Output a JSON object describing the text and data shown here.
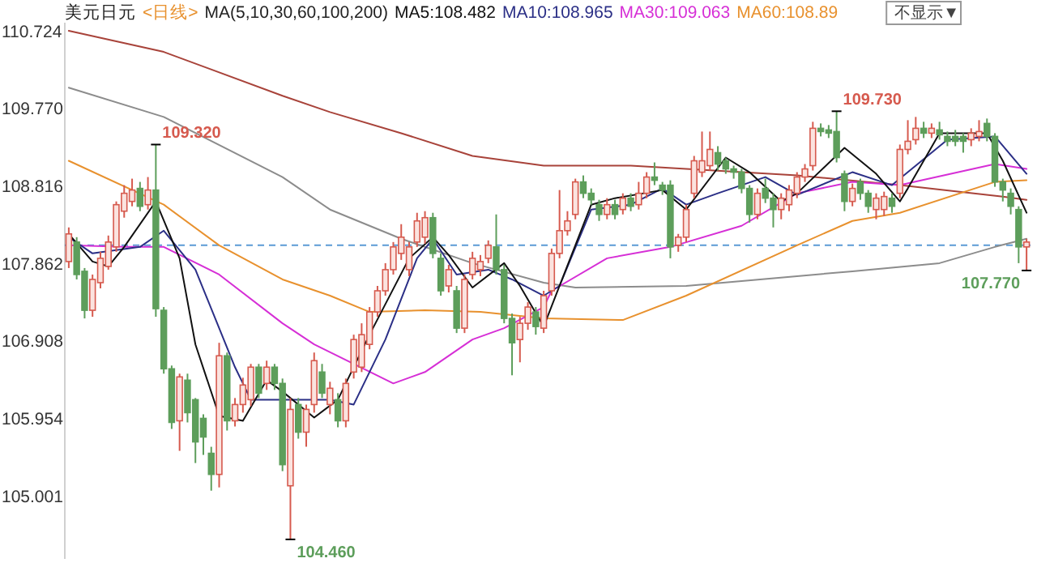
{
  "chart_data": {
    "type": "candlestick",
    "title": "美元日元",
    "subtitle": "<日线>",
    "legend": "top",
    "tick_labels": "y",
    "annotations": [
      "MA(5,10,30,60,100,200)",
      "不显示▼",
      "109.320",
      "104.460",
      "109.730",
      "107.770"
    ],
    "ylim": [
      104.22,
      110.82
    ],
    "yticks": [
      {
        "value": 110.724,
        "label": "110.724"
      },
      {
        "value": 109.77,
        "label": "109.770"
      },
      {
        "value": 108.816,
        "label": "108.816"
      },
      {
        "value": 107.862,
        "label": "107.862"
      },
      {
        "value": 106.908,
        "label": "106.908"
      },
      {
        "value": 105.954,
        "label": "105.954"
      },
      {
        "value": 105.001,
        "label": "105.001"
      }
    ],
    "ref_lines": [
      {
        "axis": "y",
        "value": 108.08,
        "color": "#5b9bd5",
        "line_style": "dashed"
      }
    ],
    "categories": [
      null,
      null,
      null,
      null,
      null,
      null,
      null,
      null,
      null,
      null,
      null,
      null,
      null,
      null,
      null,
      null,
      null,
      null,
      null,
      null,
      null,
      null,
      null,
      null,
      null,
      null,
      null,
      null,
      null,
      null,
      null,
      null,
      null,
      null,
      null,
      null,
      null,
      null,
      null,
      null,
      null,
      null,
      null,
      null,
      null,
      null,
      null,
      null,
      null,
      null,
      null,
      null,
      null,
      null,
      null,
      null,
      null,
      null,
      null,
      null,
      null,
      null,
      null,
      null,
      null,
      null,
      null,
      null,
      null,
      null,
      null,
      null,
      null,
      null,
      null,
      null,
      null,
      null,
      null,
      null,
      null,
      null,
      null,
      null,
      null,
      null,
      null,
      null,
      null,
      null,
      null,
      null,
      null,
      null,
      null,
      null,
      null,
      null,
      null,
      null,
      null,
      null,
      null,
      null,
      null,
      null,
      null,
      null,
      null,
      null,
      null,
      null,
      null,
      null,
      null,
      null,
      null,
      null,
      null,
      null,
      null,
      null
    ],
    "ohlc": [
      [
        107.88,
        108.3,
        107.8,
        108.22
      ],
      [
        108.12,
        108.18,
        107.66,
        107.72
      ],
      [
        107.76,
        107.8,
        107.18,
        107.28
      ],
      [
        107.28,
        107.72,
        107.2,
        107.66
      ],
      [
        107.62,
        108.0,
        107.55,
        107.92
      ],
      [
        107.82,
        108.2,
        107.78,
        108.12
      ],
      [
        108.06,
        108.62,
        108.0,
        108.58
      ],
      [
        108.5,
        108.82,
        108.42,
        108.72
      ],
      [
        108.62,
        108.9,
        108.56,
        108.76
      ],
      [
        108.78,
        108.86,
        108.5,
        108.56
      ],
      [
        108.58,
        108.92,
        108.52,
        108.76
      ],
      [
        108.76,
        109.32,
        107.2,
        107.3
      ],
      [
        107.28,
        107.32,
        106.5,
        106.56
      ],
      [
        106.56,
        106.6,
        105.82,
        105.9
      ],
      [
        105.92,
        106.5,
        105.55,
        106.46
      ],
      [
        106.42,
        106.5,
        105.9,
        106.02
      ],
      [
        106.18,
        106.2,
        105.4,
        105.66
      ],
      [
        105.95,
        106.0,
        105.5,
        105.72
      ],
      [
        105.52,
        105.6,
        105.06,
        105.26
      ],
      [
        105.26,
        106.88,
        105.1,
        106.72
      ],
      [
        106.72,
        106.76,
        105.8,
        105.92
      ],
      [
        105.92,
        106.2,
        105.85,
        106.12
      ],
      [
        106.12,
        106.45,
        106.02,
        106.36
      ],
      [
        106.18,
        106.62,
        106.1,
        106.58
      ],
      [
        106.58,
        106.62,
        106.2,
        106.26
      ],
      [
        106.38,
        106.66,
        106.3,
        106.58
      ],
      [
        106.58,
        106.62,
        106.3,
        106.38
      ],
      [
        106.38,
        106.44,
        105.3,
        105.38
      ],
      [
        105.12,
        106.2,
        104.46,
        106.06
      ],
      [
        106.12,
        106.2,
        105.7,
        105.78
      ],
      [
        105.78,
        106.12,
        105.6,
        106.06
      ],
      [
        106.12,
        106.76,
        106.02,
        106.66
      ],
      [
        106.52,
        106.62,
        106.2,
        106.26
      ],
      [
        106.12,
        106.4,
        106.0,
        106.32
      ],
      [
        106.18,
        106.26,
        105.84,
        105.92
      ],
      [
        105.92,
        106.44,
        105.84,
        106.38
      ],
      [
        106.52,
        106.98,
        106.44,
        106.92
      ],
      [
        106.58,
        107.12,
        106.52,
        106.98
      ],
      [
        106.86,
        107.32,
        106.8,
        107.26
      ],
      [
        107.26,
        107.58,
        107.2,
        107.52
      ],
      [
        107.52,
        107.86,
        107.46,
        107.78
      ],
      [
        107.78,
        108.12,
        107.72,
        108.06
      ],
      [
        107.98,
        108.34,
        107.9,
        108.18
      ],
      [
        107.78,
        108.12,
        107.7,
        108.06
      ],
      [
        108.12,
        108.48,
        108.06,
        108.38
      ],
      [
        108.18,
        108.5,
        108.1,
        108.42
      ],
      [
        108.42,
        108.48,
        107.92,
        107.98
      ],
      [
        107.92,
        107.98,
        107.46,
        107.52
      ],
      [
        107.58,
        107.84,
        107.5,
        107.78
      ],
      [
        107.52,
        107.58,
        107.0,
        107.06
      ],
      [
        107.06,
        107.72,
        107.0,
        107.66
      ],
      [
        107.72,
        108.0,
        107.66,
        107.92
      ],
      [
        107.78,
        107.96,
        107.7,
        107.88
      ],
      [
        107.92,
        108.14,
        107.86,
        108.08
      ],
      [
        108.06,
        108.46,
        107.72,
        107.78
      ],
      [
        107.78,
        107.84,
        107.12,
        107.18
      ],
      [
        107.18,
        107.24,
        106.48,
        106.88
      ],
      [
        106.92,
        107.2,
        106.64,
        107.12
      ],
      [
        107.12,
        107.38,
        107.04,
        107.32
      ],
      [
        107.26,
        107.32,
        106.98,
        107.08
      ],
      [
        107.06,
        107.52,
        107.0,
        107.46
      ],
      [
        107.52,
        108.04,
        107.46,
        107.98
      ],
      [
        107.98,
        108.76,
        107.92,
        108.26
      ],
      [
        108.26,
        108.5,
        108.2,
        108.38
      ],
      [
        108.46,
        108.9,
        108.4,
        108.86
      ],
      [
        108.86,
        108.94,
        108.66,
        108.72
      ],
      [
        108.72,
        108.78,
        108.58,
        108.64
      ],
      [
        108.58,
        108.64,
        108.38,
        108.46
      ],
      [
        108.46,
        108.66,
        108.4,
        108.58
      ],
      [
        108.58,
        108.64,
        108.4,
        108.46
      ],
      [
        108.52,
        108.72,
        108.46,
        108.66
      ],
      [
        108.66,
        108.72,
        108.5,
        108.56
      ],
      [
        108.58,
        108.86,
        108.52,
        108.72
      ],
      [
        108.72,
        108.98,
        108.66,
        108.92
      ],
      [
        108.92,
        109.1,
        108.82,
        108.88
      ],
      [
        108.82,
        108.86,
        108.7,
        108.76
      ],
      [
        108.82,
        108.88,
        107.92,
        108.06
      ],
      [
        108.08,
        108.22,
        108.0,
        108.18
      ],
      [
        108.18,
        108.58,
        108.12,
        108.52
      ],
      [
        108.72,
        109.18,
        108.66,
        109.12
      ],
      [
        108.98,
        109.48,
        108.92,
        109.12
      ],
      [
        109.06,
        109.48,
        109.0,
        109.26
      ],
      [
        109.22,
        109.3,
        109.0,
        109.08
      ],
      [
        109.12,
        109.16,
        108.96,
        109.02
      ],
      [
        109.02,
        109.06,
        108.9,
        108.98
      ],
      [
        108.98,
        109.02,
        108.72,
        108.78
      ],
      [
        108.78,
        108.82,
        108.36,
        108.46
      ],
      [
        108.46,
        108.78,
        108.4,
        108.72
      ],
      [
        108.78,
        108.9,
        108.6,
        108.66
      ],
      [
        108.66,
        108.72,
        108.3,
        108.52
      ],
      [
        108.52,
        108.72,
        108.4,
        108.66
      ],
      [
        108.58,
        108.82,
        108.5,
        108.76
      ],
      [
        108.72,
        108.98,
        108.66,
        108.92
      ],
      [
        108.92,
        109.08,
        108.86,
        109.02
      ],
      [
        109.06,
        109.6,
        109.0,
        109.52
      ],
      [
        109.52,
        109.58,
        109.42,
        109.48
      ],
      [
        109.5,
        109.56,
        109.4,
        109.46
      ],
      [
        109.48,
        109.73,
        109.1,
        109.16
      ],
      [
        108.96,
        109.0,
        108.5,
        108.62
      ],
      [
        108.62,
        108.84,
        108.56,
        108.78
      ],
      [
        108.86,
        108.9,
        108.64,
        108.72
      ],
      [
        108.72,
        108.76,
        108.48,
        108.56
      ],
      [
        108.52,
        108.72,
        108.4,
        108.66
      ],
      [
        108.52,
        108.74,
        108.44,
        108.68
      ],
      [
        108.66,
        108.72,
        108.48,
        108.56
      ],
      [
        108.72,
        109.32,
        108.66,
        109.26
      ],
      [
        109.26,
        109.62,
        109.2,
        109.36
      ],
      [
        109.38,
        109.66,
        109.32,
        109.52
      ],
      [
        109.52,
        109.6,
        109.4,
        109.46
      ],
      [
        109.46,
        109.58,
        109.4,
        109.52
      ],
      [
        109.5,
        109.6,
        109.38,
        109.44
      ],
      [
        109.42,
        109.48,
        109.3,
        109.36
      ],
      [
        109.42,
        109.5,
        109.3,
        109.36
      ],
      [
        109.42,
        109.46,
        109.22,
        109.36
      ],
      [
        109.38,
        109.52,
        109.3,
        109.46
      ],
      [
        109.42,
        109.62,
        109.36,
        109.48
      ],
      [
        109.58,
        109.64,
        109.36,
        109.42
      ],
      [
        109.42,
        109.46,
        108.8,
        108.86
      ],
      [
        108.86,
        108.9,
        108.62,
        108.76
      ],
      [
        108.72,
        108.78,
        108.46,
        108.56
      ],
      [
        108.52,
        108.56,
        107.86,
        108.06
      ],
      [
        108.06,
        108.16,
        107.77,
        108.12
      ]
    ],
    "series": [
      {
        "type": "line",
        "color": "#a8433a",
        "values": [
          110.72,
          null,
          null,
          null,
          null,
          null,
          null,
          null,
          null,
          null,
          null,
          null,
          110.46,
          null,
          null,
          null,
          null,
          null,
          null,
          null,
          null,
          null,
          null,
          null,
          null,
          null,
          null,
          109.92,
          null,
          null,
          null,
          null,
          null,
          109.72,
          null,
          null,
          null,
          null,
          null,
          null,
          null,
          null,
          109.46,
          null,
          null,
          null,
          null,
          null,
          null,
          null,
          null,
          109.18,
          null,
          null,
          null,
          null,
          null,
          null,
          null,
          null,
          109.06,
          null,
          null,
          null,
          null,
          null,
          null,
          null,
          null,
          null,
          null,
          109.06,
          null,
          null,
          null,
          null,
          null,
          null,
          null,
          null,
          null,
          null,
          null,
          null,
          null,
          108.98,
          null,
          null,
          null,
          null,
          null,
          null,
          108.94,
          null,
          null,
          null,
          null,
          null,
          null,
          null,
          null,
          null,
          null,
          null,
          null,
          108.82,
          null,
          null,
          null,
          null,
          null,
          null,
          null,
          null,
          null,
          null,
          null,
          null,
          108.68,
          null,
          null,
          108.64
        ]
      },
      {
        "type": "line",
        "color": "#8c8c8c",
        "values": [
          110.02,
          null,
          null,
          null,
          null,
          null,
          null,
          null,
          null,
          null,
          null,
          null,
          109.66,
          null,
          null,
          null,
          null,
          null,
          null,
          null,
          null,
          null,
          null,
          null,
          null,
          null,
          null,
          108.92,
          null,
          null,
          null,
          null,
          null,
          108.52,
          null,
          null,
          null,
          null,
          null,
          null,
          null,
          null,
          108.16,
          null,
          null,
          null,
          null,
          null,
          null,
          null,
          null,
          107.86,
          null,
          null,
          null,
          null,
          null,
          null,
          null,
          null,
          107.62,
          null,
          null,
          null,
          107.56,
          null,
          null,
          null,
          null,
          null,
          null,
          null,
          null,
          null,
          null,
          null,
          null,
          null,
          107.58,
          null,
          null,
          null,
          null,
          null,
          null,
          null,
          null,
          null,
          null,
          null,
          null,
          null,
          107.7,
          null,
          null,
          null,
          null,
          null,
          null,
          107.76,
          null,
          null,
          null,
          null,
          null,
          null,
          null,
          null,
          null,
          null,
          107.86,
          null,
          null,
          null,
          null,
          null,
          null,
          108.06,
          null,
          null,
          null,
          108.16
        ]
      },
      {
        "type": "line",
        "name": "MA60:108.89",
        "color": "#e8912e",
        "values": [
          109.12,
          null,
          null,
          null,
          null,
          null,
          null,
          null,
          null,
          null,
          null,
          null,
          108.58,
          null,
          null,
          null,
          null,
          null,
          null,
          108.08,
          null,
          null,
          null,
          null,
          null,
          null,
          null,
          107.66,
          null,
          null,
          null,
          null,
          null,
          107.46,
          null,
          null,
          null,
          null,
          107.26,
          null,
          null,
          null,
          null,
          null,
          null,
          107.28,
          null,
          null,
          null,
          null,
          null,
          null,
          107.26,
          null,
          null,
          null,
          null,
          null,
          null,
          null,
          107.18,
          null,
          null,
          null,
          null,
          null,
          null,
          null,
          null,
          null,
          107.16,
          null,
          null,
          null,
          null,
          null,
          null,
          null,
          107.46,
          null,
          null,
          null,
          null,
          null,
          null,
          null,
          null,
          null,
          null,
          null,
          null,
          null,
          108.08,
          null,
          null,
          null,
          null,
          null,
          null,
          108.38,
          null,
          null,
          null,
          null,
          null,
          108.48,
          null,
          null,
          null,
          null,
          null,
          null,
          null,
          null,
          null,
          null,
          null,
          108.86,
          null,
          null,
          null,
          108.88
        ]
      },
      {
        "type": "line",
        "name": "MA30:109.063",
        "color": "#d62fd6",
        "values": [
          108.08,
          null,
          null,
          null,
          null,
          null,
          null,
          108.06,
          null,
          null,
          null,
          null,
          108.06,
          null,
          null,
          null,
          null,
          null,
          null,
          107.72,
          null,
          null,
          null,
          null,
          null,
          null,
          null,
          107.12,
          null,
          null,
          null,
          106.86,
          null,
          null,
          null,
          null,
          null,
          null,
          null,
          null,
          null,
          106.38,
          null,
          null,
          null,
          106.52,
          null,
          null,
          null,
          null,
          null,
          106.92,
          null,
          null,
          null,
          107.06,
          null,
          null,
          null,
          null,
          107.32,
          107.52,
          null,
          null,
          null,
          null,
          null,
          null,
          107.92,
          null,
          null,
          null,
          null,
          null,
          null,
          null,
          108.06,
          null,
          null,
          null,
          null,
          null,
          null,
          null,
          null,
          108.32,
          null,
          null,
          null,
          null,
          null,
          null,
          108.72,
          null,
          null,
          null,
          null,
          null,
          null,
          108.86,
          null,
          null,
          null,
          null,
          null,
          108.82,
          null,
          null,
          null,
          null,
          null,
          null,
          null,
          null,
          null,
          null,
          null,
          109.08,
          null,
          null,
          null,
          109.02
        ]
      },
      {
        "type": "line",
        "name": "MA10:108.965",
        "color": "#2b2f86",
        "values": [
          108.18,
          null,
          null,
          107.98,
          null,
          null,
          null,
          null,
          null,
          108.06,
          null,
          null,
          108.26,
          null,
          null,
          null,
          107.78,
          null,
          null,
          null,
          null,
          106.58,
          null,
          106.18,
          null,
          null,
          null,
          null,
          null,
          106.18,
          null,
          null,
          null,
          106.18,
          null,
          null,
          106.12,
          null,
          null,
          null,
          106.92,
          null,
          null,
          null,
          107.92,
          null,
          108.16,
          null,
          null,
          107.72,
          null,
          null,
          null,
          107.78,
          null,
          null,
          107.66,
          null,
          null,
          null,
          107.46,
          null,
          107.58,
          null,
          null,
          null,
          108.52,
          null,
          null,
          null,
          null,
          108.58,
          null,
          null,
          null,
          108.78,
          null,
          null,
          108.58,
          null,
          null,
          null,
          108.72,
          null,
          null,
          null,
          null,
          null,
          108.92,
          null,
          null,
          null,
          108.7,
          null,
          null,
          null,
          null,
          null,
          null,
          108.98,
          null,
          null,
          null,
          null,
          108.82,
          null,
          null,
          null,
          null,
          null,
          null,
          109.38,
          null,
          null,
          null,
          null,
          null,
          109.42,
          null,
          null,
          null,
          108.96
        ]
      },
      {
        "type": "line",
        "name": "MA5:108.482",
        "color": "#111111",
        "values": [
          108.22,
          null,
          null,
          107.88,
          null,
          107.82,
          null,
          108.06,
          null,
          null,
          null,
          108.62,
          null,
          null,
          107.92,
          null,
          106.86,
          null,
          null,
          105.98,
          null,
          null,
          105.92,
          null,
          null,
          106.42,
          null,
          106.28,
          null,
          null,
          null,
          105.96,
          null,
          null,
          106.18,
          null,
          null,
          null,
          106.98,
          null,
          null,
          null,
          null,
          107.92,
          null,
          null,
          108.18,
          null,
          107.96,
          null,
          null,
          107.56,
          null,
          null,
          null,
          107.86,
          null,
          107.58,
          null,
          null,
          107.08,
          null,
          107.58,
          null,
          null,
          null,
          108.58,
          null,
          null,
          108.66,
          null,
          null,
          null,
          null,
          null,
          108.76,
          null,
          null,
          108.52,
          null,
          null,
          null,
          null,
          109.16,
          null,
          null,
          108.98,
          null,
          null,
          null,
          108.62,
          null,
          108.72,
          null,
          null,
          null,
          null,
          null,
          109.28,
          null,
          null,
          null,
          108.96,
          null,
          null,
          108.62,
          108.78,
          null,
          null,
          null,
          109.46,
          null,
          null,
          null,
          null,
          null,
          109.46,
          null,
          109.12,
          null,
          null,
          108.48
        ]
      }
    ]
  }
}
